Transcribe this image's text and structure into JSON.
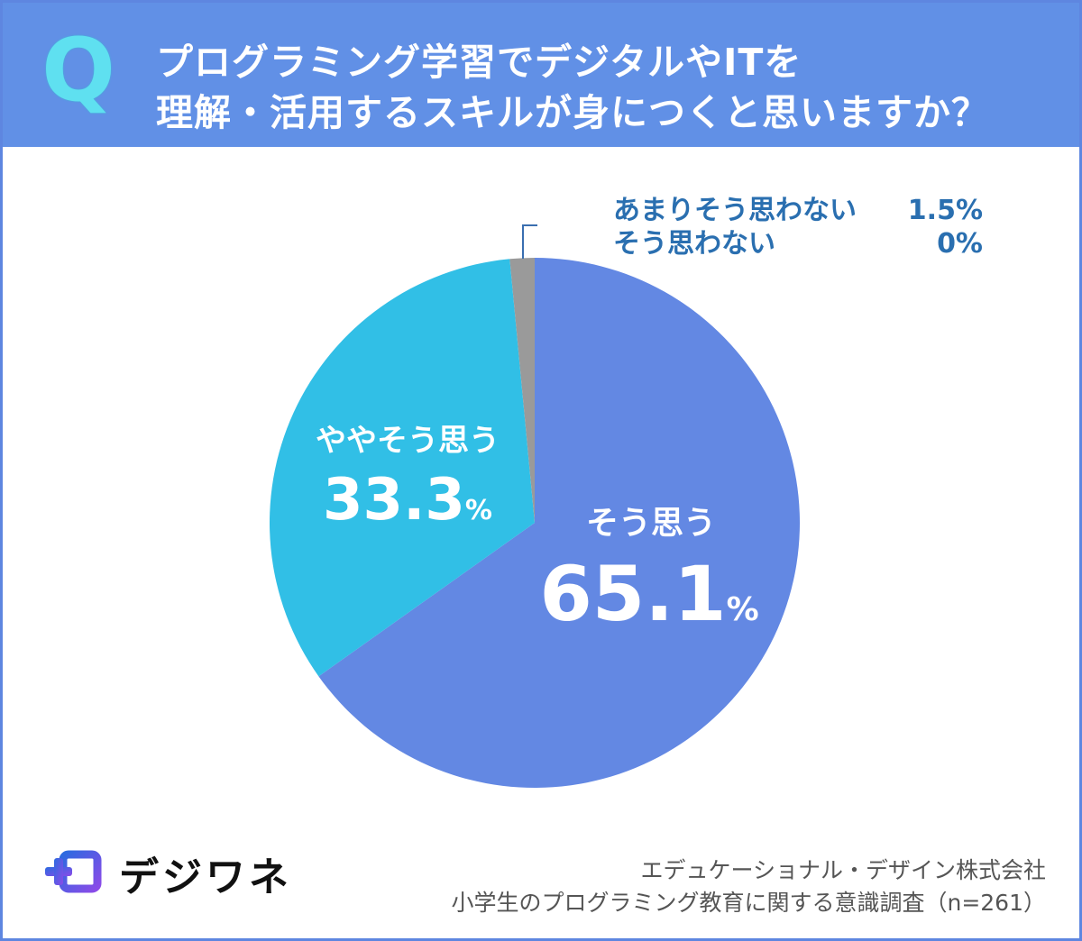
{
  "question": {
    "badge": "Q",
    "line1": "プログラミング学習でデジタルやITを",
    "line2": "理解・活用するスキルが身につくと思いますか？"
  },
  "chart_data": {
    "type": "pie",
    "slices": [
      {
        "label": "そう思う",
        "value": 65.1,
        "value_text": "65.1",
        "color": "#6388e3"
      },
      {
        "label": "ややそう思う",
        "value": 33.3,
        "value_text": "33.3",
        "color": "#31bfe6"
      },
      {
        "label": "あまりそう思わない",
        "value": 1.5,
        "value_text": "1.5%",
        "color": "#9a9a9a"
      },
      {
        "label": "そう思わない",
        "value": 0,
        "value_text": "0%",
        "color": "#9a9a9a"
      }
    ],
    "percent_sign": "%"
  },
  "logo": {
    "text": "デジワネ",
    "colors": [
      "#2d6ae0",
      "#8a4be8"
    ]
  },
  "source": {
    "line1": "エデュケーショナル・デザイン株式会社",
    "line2": "小学生のプログラミング教育に関する意識調査（n=261）"
  }
}
